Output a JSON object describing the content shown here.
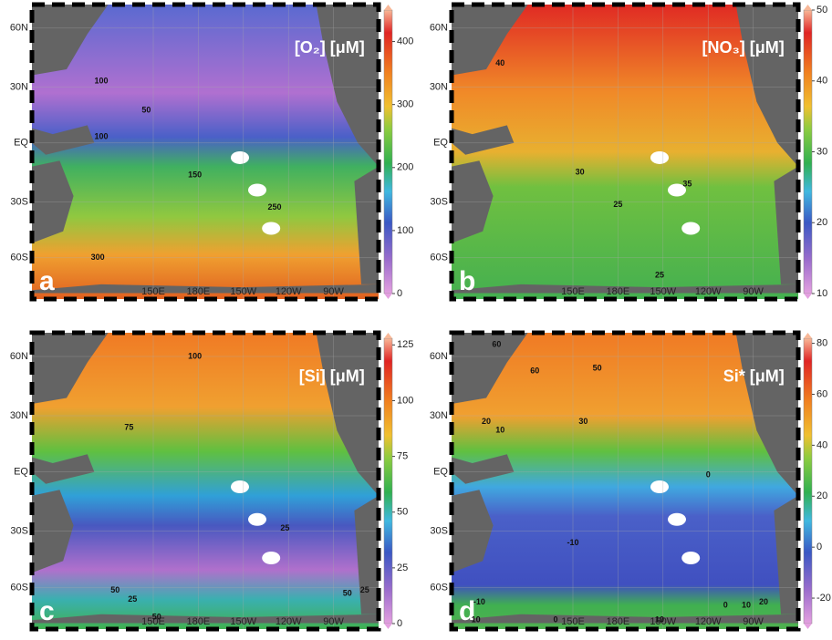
{
  "lat_labels": [
    "60N",
    "30N",
    "EQ",
    "30S",
    "60S"
  ],
  "lon_labels": [
    "150E",
    "180E",
    "150W",
    "120W",
    "90W"
  ],
  "panels": [
    {
      "label": "a",
      "title": "[O₂] [μM]",
      "colorbar": {
        "lim": [
          0,
          450
        ],
        "ticks": [
          0,
          100,
          200,
          300,
          400
        ]
      },
      "contour_labels": [
        "100",
        "50",
        "100",
        "150",
        "250",
        "300"
      ]
    },
    {
      "label": "b",
      "title": "[NO₃] [μM]",
      "colorbar": {
        "lim": [
          10,
          50
        ],
        "ticks": [
          10,
          20,
          30,
          40,
          50
        ]
      },
      "contour_labels": [
        "40",
        "30",
        "35",
        "25",
        "25"
      ]
    },
    {
      "label": "c",
      "title": "[Si] [μM]",
      "colorbar": {
        "lim": [
          0,
          128
        ],
        "ticks": [
          0,
          25,
          50,
          75,
          100,
          125
        ]
      },
      "contour_labels": [
        "100",
        "75",
        "25",
        "50",
        "25",
        "50",
        "50",
        "25"
      ]
    },
    {
      "label": "d",
      "title": "Si* [μM]",
      "colorbar": {
        "lim": [
          -30,
          82
        ],
        "ticks": [
          -20,
          0,
          20,
          40,
          60,
          80
        ]
      },
      "contour_labels": [
        "60",
        "60",
        "50",
        "30",
        "20",
        "10",
        "0",
        "-10",
        "-10",
        "10",
        "0",
        "10",
        "0",
        "10",
        "20"
      ]
    }
  ]
}
